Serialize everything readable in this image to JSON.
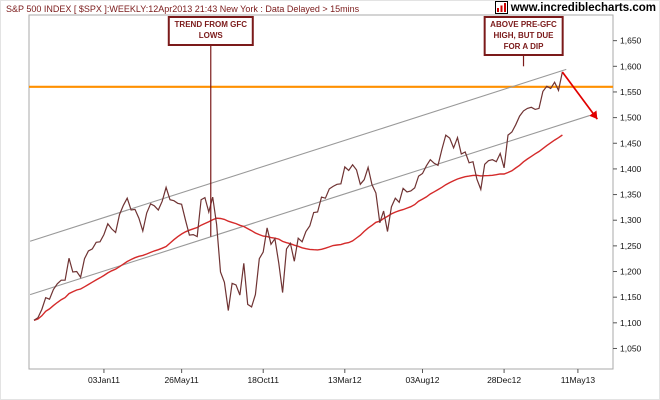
{
  "header": {
    "title": "S&P 500 INDEX [ $SPX ]:WEEKLY:12Apr2013 21:43 New York : Data Delayed > 15mins",
    "brand": "www.incrediblecharts.com"
  },
  "chart_data": {
    "type": "line",
    "title": "S&P 500 INDEX [ $SPX ]:WEEKLY:12Apr2013 21:43 New York : Data Delayed > 15mins",
    "legend": "none",
    "grid": "off",
    "x_axis": {
      "ticks": [
        {
          "label": "03Jan11",
          "week": 18
        },
        {
          "label": "26May11",
          "week": 38
        },
        {
          "label": "18Oct11",
          "week": 59
        },
        {
          "label": "13Mar12",
          "week": 80
        },
        {
          "label": "03Aug12",
          "week": 100
        },
        {
          "label": "28Dec12",
          "week": 121
        },
        {
          "label": "11May13",
          "week": 140
        }
      ]
    },
    "y_axis": {
      "min": 1050,
      "max": 1650,
      "step": 50,
      "ticks": [
        {
          "value": 1650,
          "label": "1,650"
        },
        {
          "value": 1600,
          "label": "1,600"
        },
        {
          "value": 1550,
          "label": "1,550"
        },
        {
          "value": 1500,
          "label": "1,500"
        },
        {
          "value": 1450,
          "label": "1,450"
        },
        {
          "value": 1400,
          "label": "1,400"
        },
        {
          "value": 1350,
          "label": "1,350"
        },
        {
          "value": 1300,
          "label": "1,300"
        },
        {
          "value": 1250,
          "label": "1,250"
        },
        {
          "value": 1200,
          "label": "1,200"
        },
        {
          "value": 1150,
          "label": "1,150"
        },
        {
          "value": 1100,
          "label": "1,100"
        },
        {
          "value": 1050,
          "label": "1,050"
        }
      ]
    },
    "series": {
      "name": "S&P 500 weekly close",
      "start_week": 0,
      "values": [
        1105,
        1110,
        1126,
        1149,
        1146,
        1165,
        1176,
        1183,
        1183,
        1226,
        1199,
        1200,
        1189,
        1225,
        1240,
        1244,
        1257,
        1258,
        1272,
        1293,
        1283,
        1276,
        1311,
        1329,
        1343,
        1320,
        1321,
        1304,
        1279,
        1314,
        1332,
        1328,
        1320,
        1337,
        1364,
        1340,
        1338,
        1333,
        1331,
        1300,
        1271,
        1272,
        1268,
        1340,
        1344,
        1316,
        1345,
        1292,
        1199,
        1179,
        1124,
        1177,
        1174,
        1154,
        1216,
        1136,
        1131,
        1155,
        1225,
        1238,
        1285,
        1253,
        1264,
        1216,
        1159,
        1244,
        1255,
        1220,
        1265,
        1258,
        1278,
        1289,
        1315,
        1316,
        1345,
        1343,
        1361,
        1366,
        1370,
        1371,
        1404,
        1397,
        1408,
        1398,
        1370,
        1379,
        1403,
        1369,
        1353,
        1295,
        1318,
        1278,
        1326,
        1343,
        1335,
        1362,
        1355,
        1357,
        1363,
        1386,
        1391,
        1406,
        1418,
        1411,
        1407,
        1438,
        1466,
        1460,
        1441,
        1461,
        1429,
        1433,
        1412,
        1414,
        1380,
        1360,
        1409,
        1416,
        1418,
        1414,
        1430,
        1402,
        1466,
        1472,
        1486,
        1503,
        1513,
        1518,
        1520,
        1516,
        1518,
        1551,
        1561,
        1557,
        1569,
        1553,
        1589
      ]
    },
    "ma_window": 35,
    "trendlines": [
      {
        "name": "upper-channel-trendline",
        "from": [
          -1,
          1259
        ],
        "to": [
          137,
          1594
        ]
      },
      {
        "name": "lower-channel-trendline",
        "from": [
          -1,
          1155
        ],
        "to": [
          143,
          1504
        ]
      }
    ],
    "resistance": {
      "name": "pre-GFC high",
      "value": 1560
    },
    "projection": {
      "from": [
        136,
        1589
      ],
      "to": [
        145,
        1497
      ]
    },
    "annotations": [
      {
        "name": "annotation-trend-from-gfc-lows",
        "lines": [
          "TREND FROM GFC",
          "LOWS"
        ],
        "anchor_week": 45.5,
        "pointer_value": 1268
      },
      {
        "name": "annotation-above-pre-gfc-high",
        "lines": [
          "ABOVE PRE-GFC",
          "HIGH, BUT DUE",
          "FOR A DIP"
        ],
        "anchor_week": 126,
        "pointer_value": 1600
      }
    ],
    "colors": {
      "price": "#6f3333",
      "ma": "#d42a2a",
      "trendline": "#999999",
      "resistance": "#ff9000",
      "projection": "#e10000",
      "annotation": "#7b1a1a",
      "frame": "#aaaaaa",
      "axis_text": "#111111",
      "title": "#7b1a1a"
    }
  }
}
